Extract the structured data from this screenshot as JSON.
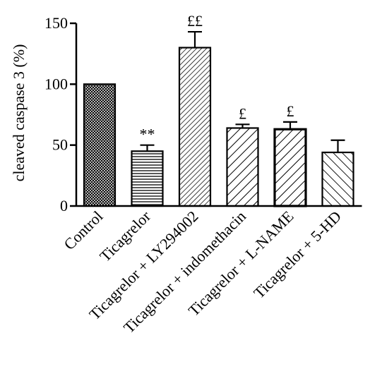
{
  "chart_data": {
    "type": "bar",
    "categories": [
      "Control",
      "Ticagrelor",
      "Ticagrelor + LY294002",
      "Ticagrelor + indomethacin",
      "Ticagrelor + L-NAME",
      "Ticagrelor + 5-HD"
    ],
    "values": [
      100,
      45,
      130,
      64,
      63,
      44
    ],
    "errors": [
      0,
      5,
      13,
      3,
      6,
      10
    ],
    "significance": [
      "",
      "**",
      "££",
      "£",
      "£",
      ""
    ],
    "patterns": [
      "crosshatch",
      "horizontal",
      "diagonal-dense",
      "diagonal-medium",
      "diagonal-medium",
      "diagonal-back"
    ],
    "title": "",
    "xlabel": "",
    "ylabel": "cleaved caspase 3 (%)",
    "ylim": [
      0,
      150
    ],
    "yticks": [
      0,
      50,
      100,
      150
    ],
    "grid": false,
    "legend": "none",
    "colors": {
      "bar_stroke": "#000000",
      "fill": "#ffffff",
      "hatch": "#000000"
    }
  }
}
